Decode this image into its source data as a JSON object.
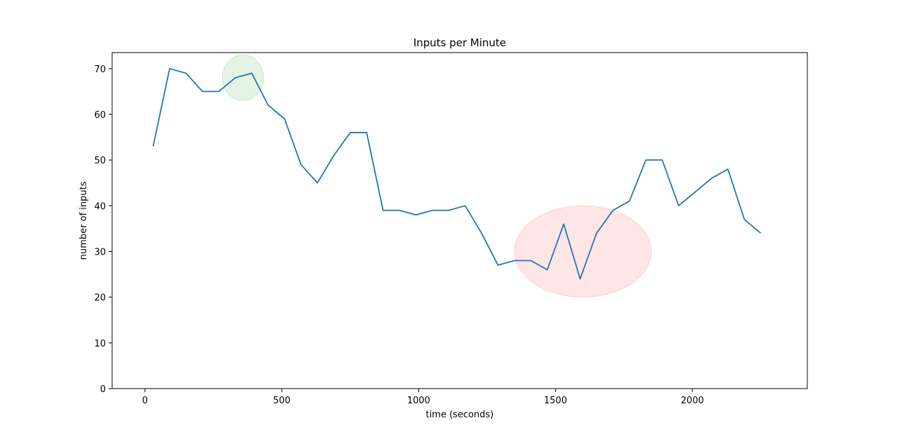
{
  "chart_data": {
    "type": "line",
    "title": "Inputs per Minute",
    "xlabel": "time (seconds)",
    "ylabel": "number of inputs",
    "xlim": [
      -120,
      2420
    ],
    "ylim": [
      0,
      73.5
    ],
    "xticks": [
      0,
      500,
      1000,
      1500,
      2000
    ],
    "yticks": [
      0,
      10,
      20,
      30,
      40,
      50,
      60,
      70
    ],
    "grid": false,
    "line_color": "#1f77b4",
    "series": [
      {
        "x": [
          30,
          90,
          150,
          210,
          270,
          330,
          390,
          450,
          510,
          570,
          630,
          690,
          750,
          810,
          870,
          930,
          990,
          1050,
          1110,
          1170,
          1230,
          1290,
          1350,
          1410,
          1470,
          1530,
          1590,
          1650,
          1710,
          1770,
          1830,
          1890,
          1950,
          2010,
          2070,
          2130,
          2190,
          2250
        ],
        "y": [
          53,
          70,
          69,
          65,
          65,
          68,
          69,
          62,
          59,
          49,
          45,
          51,
          56,
          56,
          39,
          39,
          38,
          39,
          39,
          40,
          34,
          27,
          28,
          28,
          26,
          36,
          24,
          34,
          39,
          41,
          50,
          50,
          40,
          43,
          46,
          48,
          37,
          34
        ]
      }
    ],
    "annotations": [
      {
        "shape": "ellipse",
        "center_x": 358,
        "center_y": 68,
        "half_width_x": 75,
        "half_height_y": 5,
        "color": "#2ca02c"
      },
      {
        "shape": "ellipse",
        "center_x": 1600,
        "center_y": 30,
        "half_width_x": 250,
        "half_height_y": 10,
        "color": "#ff3b3b"
      }
    ]
  }
}
